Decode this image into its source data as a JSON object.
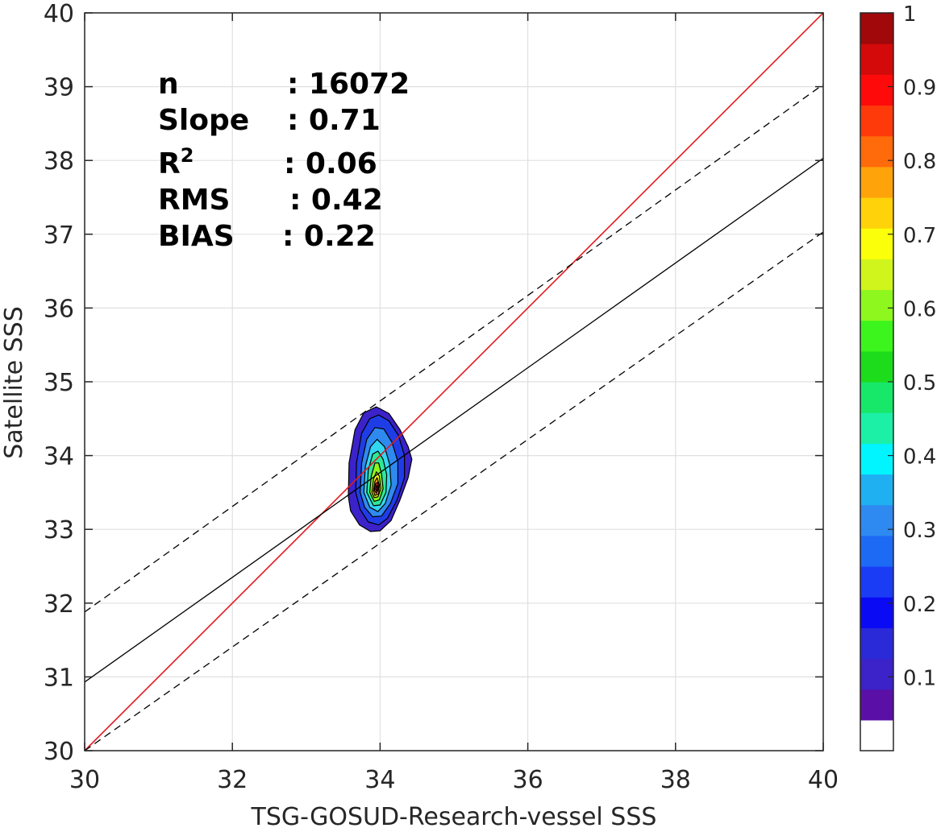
{
  "chart_data": {
    "type": "scatter",
    "xlabel": "TSG-GOSUD-Research-vessel SSS",
    "ylabel": "Satellite SSS",
    "xlim": [
      30,
      40
    ],
    "ylim": [
      30,
      40
    ],
    "x_ticks": [
      "30",
      "32",
      "34",
      "36",
      "38",
      "40"
    ],
    "y_ticks": [
      "30",
      "31",
      "32",
      "33",
      "34",
      "35",
      "36",
      "37",
      "38",
      "39",
      "40"
    ],
    "grid": true,
    "stats": {
      "n_label": "n",
      "n_value": ": 16072",
      "slope_label": "Slope",
      "slope_value": ": 0.71",
      "r2_label": "R",
      "r2_sup": "2",
      "r2_value": ": 0.06",
      "rms_label": "RMS",
      "rms_value": ": 0.42",
      "bias_label": "BIAS",
      "bias_value": ": 0.22"
    },
    "lines": [
      {
        "kind": "identity",
        "color": "#e31a1c",
        "style": "solid",
        "x": [
          30,
          40
        ],
        "y": [
          30,
          40
        ]
      },
      {
        "kind": "fit",
        "color": "#000000",
        "style": "solid",
        "x": [
          30,
          40
        ],
        "y": [
          30.93,
          38.03
        ]
      },
      {
        "kind": "fit-upper",
        "color": "#000000",
        "style": "dashed",
        "x": [
          30,
          40
        ],
        "y": [
          31.88,
          39.03
        ]
      },
      {
        "kind": "fit-lower",
        "color": "#000000",
        "style": "dashed",
        "x": [
          30,
          40
        ],
        "y": [
          30.0,
          37.03
        ]
      }
    ],
    "density_contours": [
      {
        "level": 0.05,
        "color": "#3b22c9",
        "points": [
          [
            33.57,
            33.45
          ],
          [
            33.58,
            33.9
          ],
          [
            33.66,
            34.35
          ],
          [
            33.78,
            34.58
          ],
          [
            33.95,
            34.66
          ],
          [
            34.12,
            34.57
          ],
          [
            34.27,
            34.35
          ],
          [
            34.38,
            34.12
          ],
          [
            34.43,
            33.95
          ],
          [
            34.38,
            33.7
          ],
          [
            34.27,
            33.4
          ],
          [
            34.15,
            33.12
          ],
          [
            34.0,
            32.98
          ],
          [
            33.87,
            32.97
          ],
          [
            33.72,
            33.06
          ],
          [
            33.6,
            33.25
          ]
        ]
      },
      {
        "level": 0.15,
        "color": "#1f3de6",
        "points": [
          [
            33.67,
            33.5
          ],
          [
            33.68,
            33.9
          ],
          [
            33.75,
            34.3
          ],
          [
            33.86,
            34.5
          ],
          [
            33.98,
            34.55
          ],
          [
            34.12,
            34.47
          ],
          [
            34.25,
            34.27
          ],
          [
            34.33,
            34.0
          ],
          [
            34.33,
            33.7
          ],
          [
            34.23,
            33.4
          ],
          [
            34.1,
            33.15
          ],
          [
            33.98,
            33.06
          ],
          [
            33.84,
            33.1
          ],
          [
            33.73,
            33.27
          ]
        ]
      },
      {
        "level": 0.25,
        "color": "#2f8af0",
        "points": [
          [
            33.73,
            33.5
          ],
          [
            33.75,
            33.9
          ],
          [
            33.82,
            34.22
          ],
          [
            33.93,
            34.38
          ],
          [
            34.05,
            34.36
          ],
          [
            34.16,
            34.18
          ],
          [
            34.24,
            33.92
          ],
          [
            34.24,
            33.62
          ],
          [
            34.14,
            33.35
          ],
          [
            34.02,
            33.18
          ],
          [
            33.9,
            33.17
          ],
          [
            33.79,
            33.3
          ]
        ]
      },
      {
        "level": 0.35,
        "color": "#33d6f2",
        "points": [
          [
            33.78,
            33.5
          ],
          [
            33.8,
            33.85
          ],
          [
            33.87,
            34.12
          ],
          [
            33.96,
            34.22
          ],
          [
            34.06,
            34.12
          ],
          [
            34.13,
            33.88
          ],
          [
            34.15,
            33.6
          ],
          [
            34.07,
            33.35
          ],
          [
            33.97,
            33.24
          ],
          [
            33.86,
            33.3
          ]
        ]
      },
      {
        "level": 0.45,
        "color": "#2ee89a",
        "points": [
          [
            33.82,
            33.5
          ],
          [
            33.84,
            33.8
          ],
          [
            33.9,
            34.02
          ],
          [
            33.97,
            34.06
          ],
          [
            34.04,
            33.95
          ],
          [
            34.09,
            33.74
          ],
          [
            34.08,
            33.5
          ],
          [
            34.0,
            33.33
          ],
          [
            33.91,
            33.32
          ]
        ]
      },
      {
        "level": 0.55,
        "color": "#8ef71e",
        "points": [
          [
            33.86,
            33.5
          ],
          [
            33.88,
            33.72
          ],
          [
            33.93,
            33.9
          ],
          [
            33.98,
            33.9
          ],
          [
            34.02,
            33.75
          ],
          [
            34.04,
            33.55
          ],
          [
            33.99,
            33.4
          ],
          [
            33.92,
            33.38
          ]
        ]
      },
      {
        "level": 0.65,
        "color": "#f2ee1c",
        "points": [
          [
            33.89,
            33.5
          ],
          [
            33.91,
            33.68
          ],
          [
            33.95,
            33.78
          ],
          [
            33.99,
            33.72
          ],
          [
            34.01,
            33.55
          ],
          [
            33.97,
            33.44
          ],
          [
            33.92,
            33.43
          ]
        ]
      },
      {
        "level": 0.75,
        "color": "#f99a1a",
        "points": [
          [
            33.91,
            33.52
          ],
          [
            33.93,
            33.65
          ],
          [
            33.96,
            33.7
          ],
          [
            33.99,
            33.6
          ],
          [
            33.98,
            33.48
          ],
          [
            33.93,
            33.46
          ]
        ]
      },
      {
        "level": 0.85,
        "color": "#f2391b",
        "points": [
          [
            33.92,
            33.53
          ],
          [
            33.94,
            33.62
          ],
          [
            33.97,
            33.64
          ],
          [
            33.98,
            33.55
          ],
          [
            33.95,
            33.49
          ]
        ]
      },
      {
        "level": 0.95,
        "color": "#b3080f",
        "points": [
          [
            33.94,
            33.54
          ],
          [
            33.955,
            33.6
          ],
          [
            33.97,
            33.56
          ],
          [
            33.955,
            33.52
          ]
        ]
      }
    ],
    "colorbar": {
      "ticks": [
        "0.1",
        "0.2",
        "0.3",
        "0.4",
        "0.5",
        "0.6",
        "0.7",
        "0.8",
        "0.9",
        "1"
      ],
      "colors": [
        "#ffffff",
        "#5a10a6",
        "#3b22c9",
        "#2a2ad8",
        "#0a0af5",
        "#1a3cf5",
        "#1d6af5",
        "#2e8af0",
        "#1fb0f2",
        "#00f5ff",
        "#1cf0a6",
        "#18e86a",
        "#1cdc1c",
        "#3cf51c",
        "#8ef71e",
        "#d0f51c",
        "#fcff0a",
        "#ffd20a",
        "#ffa30a",
        "#ff6a0a",
        "#ff3a0a",
        "#ff0a0a",
        "#d40a0a",
        "#a0080a"
      ]
    }
  }
}
